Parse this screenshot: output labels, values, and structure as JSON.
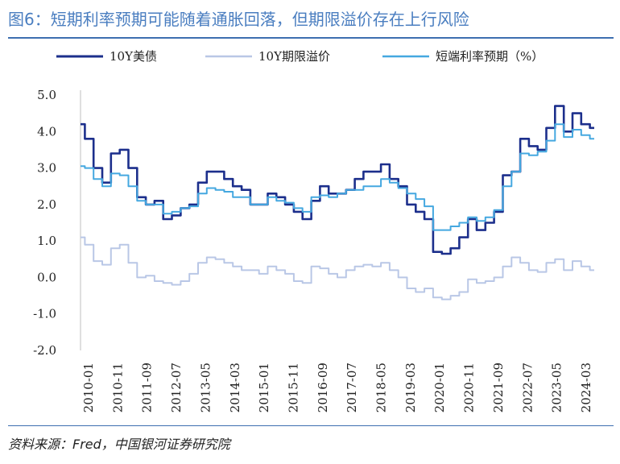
{
  "title": "图6：短期利率预期可能随着通胀回落，但期限溢价存在上行风险",
  "source": "资料来源：Fred，中国银河证券研究院",
  "chart_data": {
    "type": "line",
    "ylim": [
      -2.0,
      5.0
    ],
    "yticks": [
      "5.0",
      "4.0",
      "3.0",
      "2.0",
      "1.0",
      "0.0",
      "-1.0",
      "-2.0"
    ],
    "ytick_values": [
      5,
      4,
      3,
      2,
      1,
      0,
      -1,
      -2
    ],
    "xticks": [
      "2010-01",
      "2010-11",
      "2011-09",
      "2012-07",
      "2013-05",
      "2014-03",
      "2015-01",
      "2015-11",
      "2016-09",
      "2017-07",
      "2018-05",
      "2019-03",
      "2020-01",
      "2020-11",
      "2021-09",
      "2022-07",
      "2023-05",
      "2024-03"
    ],
    "x": [
      2010.0,
      2010.25,
      2010.5,
      2010.75,
      2011.0,
      2011.25,
      2011.5,
      2011.75,
      2012.0,
      2012.25,
      2012.5,
      2012.75,
      2013.0,
      2013.25,
      2013.5,
      2013.75,
      2014.0,
      2014.25,
      2014.5,
      2014.75,
      2015.0,
      2015.25,
      2015.5,
      2015.75,
      2016.0,
      2016.25,
      2016.5,
      2016.75,
      2017.0,
      2017.25,
      2017.5,
      2017.75,
      2018.0,
      2018.25,
      2018.5,
      2018.75,
      2019.0,
      2019.25,
      2019.5,
      2019.75,
      2020.0,
      2020.25,
      2020.5,
      2020.75,
      2021.0,
      2021.25,
      2021.5,
      2021.75,
      2022.0,
      2022.25,
      2022.5,
      2022.75,
      2023.0,
      2023.25,
      2023.5,
      2023.75,
      2024.0,
      2024.25,
      2024.5,
      2024.75
    ],
    "series": [
      {
        "name": "10Y美债",
        "color": "#1c2f8c",
        "width": 2.6,
        "values": [
          4.2,
          3.8,
          3.0,
          2.6,
          3.4,
          3.5,
          3.0,
          2.2,
          2.0,
          2.1,
          1.6,
          1.7,
          1.9,
          2.0,
          2.6,
          2.9,
          2.9,
          2.7,
          2.5,
          2.4,
          2.0,
          2.0,
          2.3,
          2.2,
          2.0,
          1.8,
          1.6,
          2.1,
          2.5,
          2.3,
          2.3,
          2.4,
          2.7,
          2.9,
          2.9,
          3.1,
          2.7,
          2.5,
          2.0,
          1.8,
          1.6,
          0.7,
          0.65,
          0.8,
          1.1,
          1.6,
          1.3,
          1.5,
          1.8,
          2.8,
          2.9,
          3.8,
          3.6,
          3.5,
          4.1,
          4.7,
          4.0,
          4.5,
          4.2,
          4.1
        ]
      },
      {
        "name": "10Y期限溢价",
        "color": "#b9c7e6",
        "width": 2.0,
        "values": [
          1.1,
          0.9,
          0.45,
          0.35,
          0.8,
          0.9,
          0.4,
          0.0,
          0.05,
          -0.1,
          -0.15,
          -0.2,
          -0.1,
          0.1,
          0.4,
          0.55,
          0.5,
          0.4,
          0.3,
          0.2,
          0.2,
          0.1,
          0.3,
          0.2,
          0.1,
          -0.1,
          -0.15,
          0.3,
          0.25,
          0.1,
          0.0,
          0.2,
          0.3,
          0.35,
          0.3,
          0.4,
          0.2,
          0.0,
          -0.3,
          -0.4,
          -0.3,
          -0.55,
          -0.6,
          -0.5,
          -0.4,
          -0.05,
          -0.15,
          -0.1,
          0.0,
          0.3,
          0.55,
          0.4,
          0.2,
          0.15,
          0.4,
          0.5,
          0.2,
          0.45,
          0.3,
          0.2
        ]
      },
      {
        "name": "短端利率预期（%）",
        "color": "#45a8e0",
        "width": 2.0,
        "values": [
          3.05,
          3.0,
          2.7,
          2.5,
          2.85,
          2.8,
          2.5,
          2.1,
          2.0,
          2.0,
          1.75,
          1.8,
          1.9,
          1.95,
          2.3,
          2.45,
          2.4,
          2.35,
          2.2,
          2.2,
          2.0,
          2.0,
          2.2,
          2.1,
          2.05,
          1.9,
          1.8,
          2.2,
          2.25,
          2.2,
          2.3,
          2.4,
          2.4,
          2.5,
          2.5,
          2.7,
          2.6,
          2.45,
          2.3,
          2.15,
          1.95,
          1.3,
          1.3,
          1.4,
          1.5,
          1.65,
          1.55,
          1.65,
          1.85,
          2.5,
          2.9,
          3.4,
          3.35,
          3.45,
          3.75,
          4.2,
          3.85,
          4.05,
          3.9,
          3.8
        ]
      }
    ],
    "legend_position": "top"
  }
}
